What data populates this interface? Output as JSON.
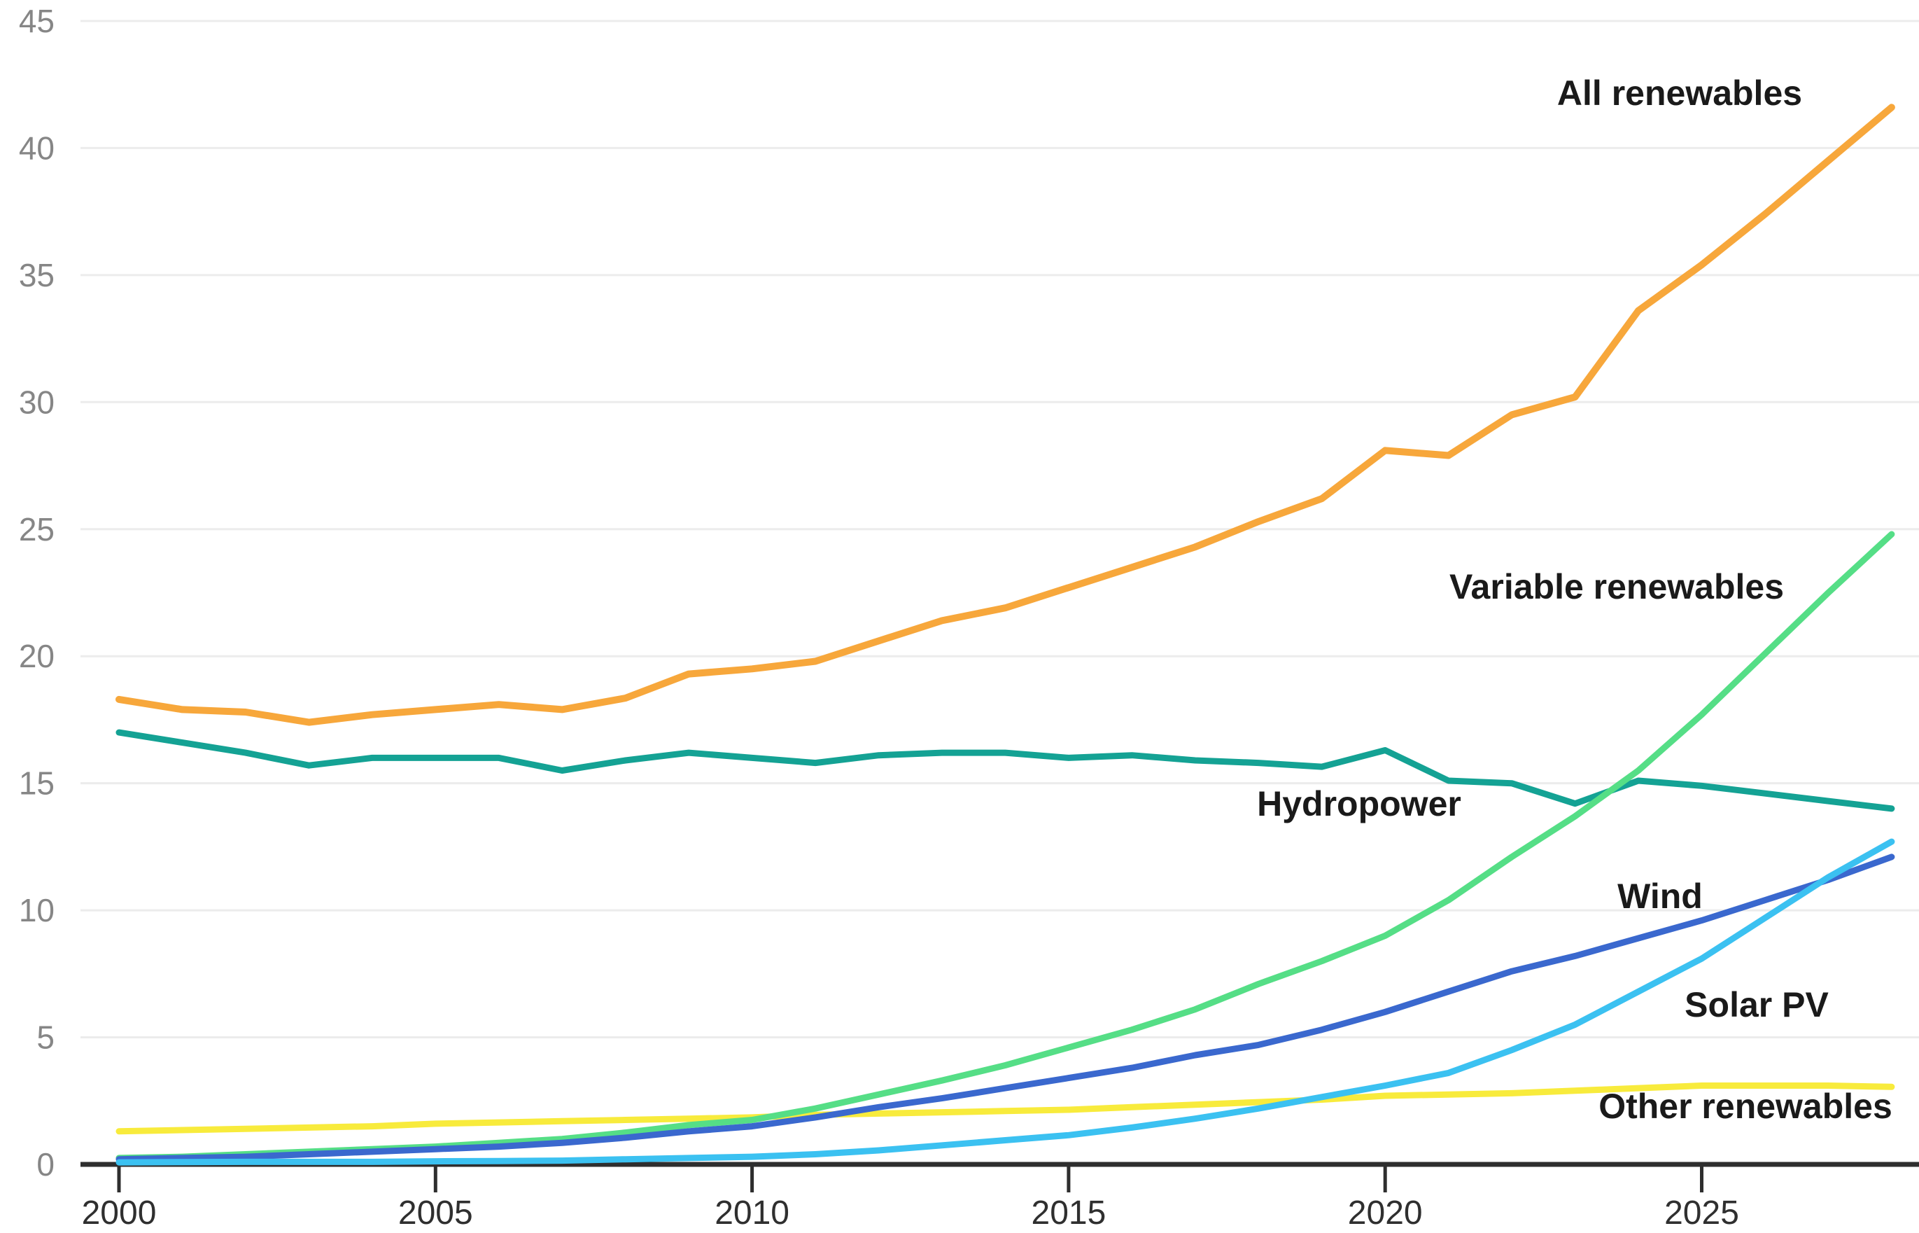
{
  "chart_data": {
    "type": "line",
    "title": "",
    "xlabel": "",
    "ylabel": "",
    "x": [
      2000,
      2001,
      2002,
      2003,
      2004,
      2005,
      2006,
      2007,
      2008,
      2009,
      2010,
      2011,
      2012,
      2013,
      2014,
      2015,
      2016,
      2017,
      2018,
      2019,
      2020,
      2021,
      2022,
      2023,
      2024,
      2025,
      2026,
      2027,
      2028
    ],
    "series": [
      {
        "name": "All renewables",
        "color": "#F7A73B",
        "values": [
          18.3,
          17.9,
          17.8,
          17.4,
          17.7,
          17.9,
          18.1,
          17.9,
          18.35,
          19.3,
          19.5,
          19.8,
          20.6,
          21.4,
          21.9,
          22.7,
          23.5,
          24.3,
          25.3,
          26.2,
          28.1,
          27.9,
          29.5,
          30.2,
          33.6,
          35.4,
          37.4,
          39.5,
          41.6
        ]
      },
      {
        "name": "Variable renewables",
        "color": "#55DE86",
        "values": [
          0.25,
          0.3,
          0.4,
          0.5,
          0.6,
          0.7,
          0.85,
          1.0,
          1.25,
          1.55,
          1.75,
          2.2,
          2.75,
          3.3,
          3.9,
          4.6,
          5.3,
          6.1,
          7.1,
          8.0,
          9.0,
          10.4,
          12.1,
          13.7,
          15.5,
          17.7,
          20.1,
          22.5,
          24.8
        ]
      },
      {
        "name": "Hydropower",
        "color": "#14A294",
        "values": [
          17.0,
          16.6,
          16.2,
          15.7,
          16.0,
          16.0,
          16.0,
          15.5,
          15.9,
          16.2,
          16.0,
          15.8,
          16.1,
          16.2,
          16.2,
          16.0,
          16.1,
          15.9,
          15.8,
          15.65,
          16.3,
          15.1,
          15.0,
          14.2,
          15.1,
          14.9,
          14.6,
          14.3,
          14.0
        ]
      },
      {
        "name": "Wind",
        "color": "#3A68CE",
        "values": [
          0.2,
          0.25,
          0.3,
          0.4,
          0.5,
          0.6,
          0.7,
          0.85,
          1.05,
          1.3,
          1.5,
          1.85,
          2.25,
          2.6,
          3.0,
          3.4,
          3.8,
          4.3,
          4.7,
          5.3,
          6.0,
          6.8,
          7.6,
          8.2,
          8.9,
          9.6,
          10.4,
          11.2,
          12.1
        ]
      },
      {
        "name": "Solar PV",
        "color": "#3BC1F1",
        "values": [
          0.08,
          0.09,
          0.1,
          0.1,
          0.1,
          0.12,
          0.13,
          0.15,
          0.2,
          0.25,
          0.3,
          0.4,
          0.55,
          0.75,
          0.95,
          1.15,
          1.45,
          1.8,
          2.2,
          2.65,
          3.1,
          3.6,
          4.5,
          5.5,
          6.8,
          8.1,
          9.7,
          11.3,
          12.7
        ]
      },
      {
        "name": "Other renewables",
        "color": "#F8EB3C",
        "values": [
          1.3,
          1.35,
          1.4,
          1.45,
          1.5,
          1.6,
          1.65,
          1.7,
          1.75,
          1.8,
          1.85,
          1.95,
          2.0,
          2.05,
          2.1,
          2.15,
          2.25,
          2.35,
          2.45,
          2.55,
          2.7,
          2.75,
          2.8,
          2.9,
          3.0,
          3.1,
          3.1,
          3.1,
          3.05
        ]
      }
    ],
    "yticks": [
      0,
      5,
      10,
      15,
      20,
      25,
      30,
      35,
      40,
      45
    ],
    "xticks": [
      2000,
      2005,
      2010,
      2015,
      2020,
      2025
    ],
    "ylim": [
      0,
      45
    ],
    "xlim": [
      2000,
      2028
    ],
    "grid": true,
    "legend_position": "inline-labels",
    "grid_color": "#ECECEC",
    "axis_color": "#2e2e2e",
    "ytick_color": "#868686",
    "xtick_color": "#2f2f2f",
    "label_color": "#1a1a1a"
  }
}
